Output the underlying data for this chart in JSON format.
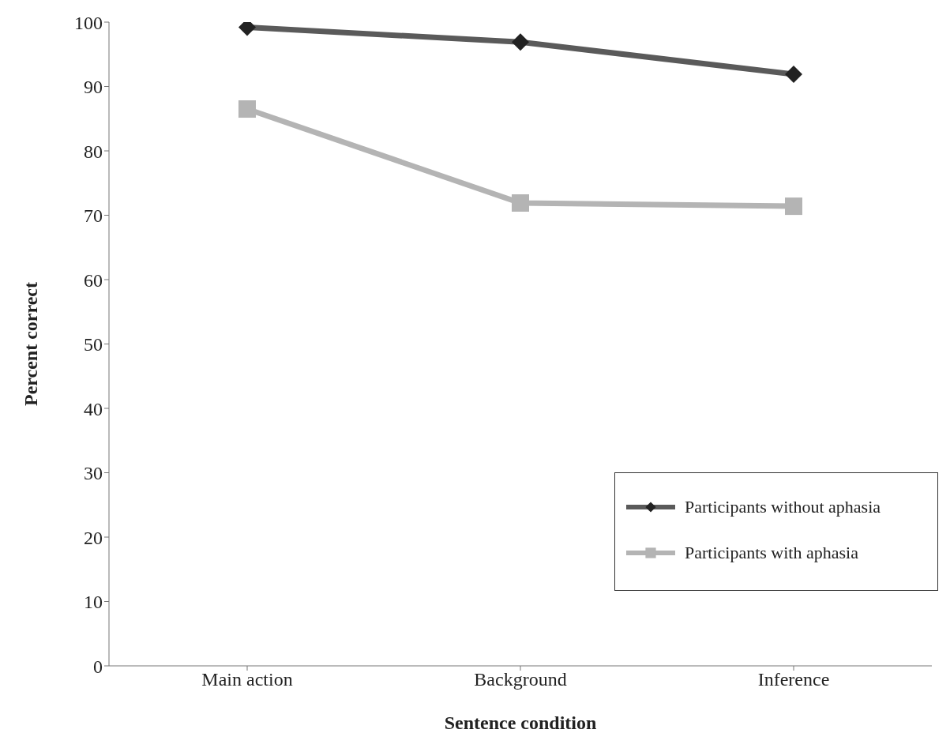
{
  "chart_data": {
    "type": "line",
    "xlabel": "Sentence condition",
    "ylabel": "Percent correct",
    "categories": [
      "Main action",
      "Background",
      "Inference"
    ],
    "series": [
      {
        "name": "Participants without aphasia",
        "color": "#5a5a5a",
        "marker": "diamond",
        "values": [
          99.2,
          96.9,
          91.9
        ]
      },
      {
        "name": "Participants with aphasia",
        "color": "#b4b4b4",
        "marker": "square",
        "values": [
          86.5,
          71.9,
          71.4
        ]
      }
    ],
    "ylim": [
      0,
      100
    ],
    "yticks": [
      0,
      10,
      20,
      30,
      40,
      50,
      60,
      70,
      80,
      90,
      100
    ],
    "grid": false,
    "legend": "bottom right"
  }
}
